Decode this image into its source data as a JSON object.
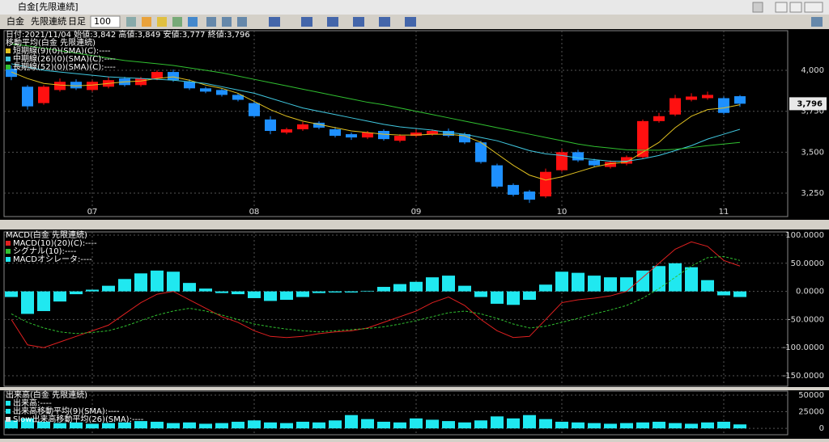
{
  "window": {
    "title": "白金[先限連続]"
  },
  "toolbar": {
    "symbol": "白金",
    "contract": "先限連続",
    "period": "日足",
    "count": "100"
  },
  "price_tag": "3,796",
  "chart_data": [
    {
      "type": "candlestick",
      "info": "日付:2021/11/04 始値:3,842 高値:3,849 安値:3,777 終値:3,796",
      "legend_title": "移動平均(白金 先限連続)",
      "categories": [
        null,
        null,
        null,
        null,
        null,
        "07",
        null,
        null,
        null,
        null,
        null,
        null,
        null,
        null,
        null,
        "08",
        null,
        null,
        null,
        null,
        null,
        null,
        null,
        null,
        null,
        "09",
        null,
        null,
        null,
        null,
        null,
        null,
        null,
        null,
        "10",
        null,
        null,
        null,
        null,
        null,
        null,
        null,
        null,
        null,
        "11",
        null
      ],
      "open": [
        4010,
        3900,
        3800,
        3880,
        3930,
        3880,
        3900,
        3950,
        3910,
        3950,
        3990,
        3930,
        3890,
        3880,
        3850,
        3800,
        3700,
        3620,
        3640,
        3680,
        3640,
        3610,
        3590,
        3630,
        3570,
        3600,
        3610,
        3630,
        3610,
        3560,
        3420,
        3300,
        3260,
        3230,
        3390,
        3500,
        3450,
        3410,
        3430,
        3470,
        3690,
        3730,
        3820,
        3830,
        3830,
        3842
      ],
      "high": [
        4030,
        3910,
        3910,
        3950,
        3945,
        3940,
        3960,
        3960,
        3960,
        4000,
        4005,
        3945,
        3900,
        3890,
        3860,
        3810,
        3720,
        3650,
        3685,
        3690,
        3655,
        3620,
        3630,
        3640,
        3610,
        3640,
        3640,
        3645,
        3620,
        3570,
        3430,
        3310,
        3270,
        3400,
        3520,
        3515,
        3460,
        3450,
        3480,
        3700,
        3740,
        3850,
        3860,
        3870,
        3840,
        3849
      ],
      "low": [
        3940,
        3760,
        3790,
        3870,
        3880,
        3870,
        3890,
        3900,
        3900,
        3940,
        3930,
        3880,
        3860,
        3840,
        3810,
        3710,
        3610,
        3610,
        3630,
        3640,
        3590,
        3575,
        3580,
        3570,
        3560,
        3590,
        3600,
        3590,
        3550,
        3430,
        3280,
        3230,
        3190,
        3220,
        3380,
        3440,
        3410,
        3400,
        3420,
        3460,
        3680,
        3720,
        3810,
        3820,
        3730,
        3777
      ],
      "close": [
        3960,
        3780,
        3900,
        3930,
        3890,
        3930,
        3940,
        3910,
        3950,
        3990,
        3940,
        3890,
        3870,
        3850,
        3820,
        3720,
        3630,
        3640,
        3670,
        3650,
        3600,
        3590,
        3620,
        3580,
        3600,
        3620,
        3630,
        3600,
        3560,
        3440,
        3290,
        3240,
        3210,
        3380,
        3500,
        3450,
        3420,
        3440,
        3470,
        3690,
        3720,
        3830,
        3840,
        3850,
        3740,
        3796
      ],
      "up_color": "#ff1010",
      "down_color": "#1e90ff",
      "series": [
        {
          "name": "短期線(9)(0)(SMA)(C):----",
          "color": "#e0c020",
          "values": [
            3990,
            3950,
            3920,
            3910,
            3905,
            3910,
            3920,
            3930,
            3935,
            3950,
            3960,
            3940,
            3910,
            3890,
            3860,
            3810,
            3760,
            3720,
            3690,
            3670,
            3650,
            3630,
            3620,
            3610,
            3605,
            3605,
            3610,
            3610,
            3600,
            3560,
            3490,
            3420,
            3360,
            3330,
            3350,
            3380,
            3410,
            3430,
            3440,
            3500,
            3560,
            3650,
            3720,
            3760,
            3770,
            3790
          ]
        },
        {
          "name": "中期線(26)(0)(SMA)(C):----",
          "color": "#40c8e0",
          "values": [
            4040,
            4020,
            4000,
            3990,
            3980,
            3970,
            3960,
            3955,
            3950,
            3945,
            3940,
            3930,
            3920,
            3900,
            3880,
            3860,
            3830,
            3800,
            3770,
            3750,
            3730,
            3710,
            3690,
            3670,
            3655,
            3645,
            3635,
            3620,
            3610,
            3590,
            3570,
            3540,
            3510,
            3490,
            3480,
            3465,
            3455,
            3445,
            3445,
            3460,
            3480,
            3510,
            3540,
            3580,
            3610,
            3640
          ]
        },
        {
          "name": "長期線(52)(0)(SMA)(C):----",
          "color": "#30c030",
          "values": [
            4160,
            4150,
            4135,
            4120,
            4105,
            4090,
            4075,
            4060,
            4050,
            4040,
            4030,
            4015,
            4000,
            3985,
            3965,
            3945,
            3925,
            3905,
            3885,
            3865,
            3845,
            3825,
            3805,
            3790,
            3770,
            3750,
            3730,
            3710,
            3690,
            3670,
            3650,
            3630,
            3610,
            3590,
            3570,
            3550,
            3535,
            3525,
            3515,
            3512,
            3512,
            3518,
            3528,
            3540,
            3550,
            3560
          ]
        }
      ],
      "ylim": [
        3107,
        4242
      ],
      "yticks": [
        {
          "value": 3250,
          "label": "3,250"
        },
        {
          "value": 3500,
          "label": "3,500"
        },
        {
          "value": 3750,
          "label": "3,750"
        },
        {
          "value": 4000,
          "label": "4,000"
        }
      ],
      "grid": true
    },
    {
      "type": "macd",
      "legend_title": "MACD(白金 先限連続)",
      "series": [
        {
          "name": "MACD(10)(20)(C):----",
          "color": "#e02020",
          "values": [
            -50,
            -95,
            -100,
            -90,
            -80,
            -70,
            -60,
            -40,
            -20,
            -5,
            0,
            -15,
            -30,
            -45,
            -55,
            -70,
            -80,
            -82,
            -80,
            -75,
            -72,
            -70,
            -65,
            -55,
            -45,
            -35,
            -20,
            -10,
            -25,
            -50,
            -70,
            -82,
            -80,
            -50,
            -20,
            -15,
            -12,
            -8,
            0,
            25,
            50,
            75,
            88,
            80,
            55,
            45
          ]
        },
        {
          "name": "シグナル(10):----",
          "color": "#30c030",
          "values": [
            -40,
            -55,
            -65,
            -72,
            -75,
            -73,
            -70,
            -62,
            -52,
            -42,
            -35,
            -30,
            -35,
            -42,
            -50,
            -58,
            -63,
            -67,
            -70,
            -72,
            -70,
            -68,
            -66,
            -63,
            -58,
            -52,
            -45,
            -38,
            -35,
            -40,
            -48,
            -58,
            -65,
            -62,
            -55,
            -48,
            -40,
            -33,
            -25,
            -12,
            5,
            25,
            45,
            60,
            62,
            55
          ]
        },
        {
          "name": "MACDオシレータ:----",
          "color": "#20e8f0",
          "values": [
            -10,
            -40,
            -35,
            -18,
            -5,
            3,
            10,
            22,
            32,
            37,
            35,
            15,
            5,
            -3,
            -5,
            -12,
            -17,
            -15,
            -10,
            -3,
            -2,
            -2,
            1,
            8,
            13,
            17,
            25,
            28,
            10,
            -10,
            -22,
            -24,
            -15,
            12,
            35,
            33,
            28,
            25,
            25,
            37,
            45,
            50,
            43,
            20,
            -7,
            -10
          ]
        }
      ],
      "ylim": [
        -168.6,
        105.7
      ],
      "yticks": [
        {
          "value": 100,
          "label": "100.0000"
        },
        {
          "value": 50,
          "label": "50.0000"
        },
        {
          "value": 0,
          "label": "0.0000"
        },
        {
          "value": -50,
          "label": "-50.0000"
        },
        {
          "value": -100,
          "label": "-100.0000"
        },
        {
          "value": -150,
          "label": "-150.0000"
        }
      ],
      "grid": true
    },
    {
      "type": "volume",
      "legend_title": "出来高(白金 先限連続)",
      "series": [
        {
          "name": "出来高:----",
          "color": "#20e8f0",
          "values": [
            12000,
            15000,
            10000,
            8000,
            9000,
            7000,
            8000,
            9000,
            11000,
            10000,
            8000,
            9000,
            7000,
            8000,
            10000,
            12000,
            9000,
            8000,
            10000,
            9000,
            12000,
            20000,
            14000,
            10000,
            9000,
            15000,
            13000,
            11000,
            9000,
            12000,
            18000,
            15000,
            20000,
            14000,
            10000,
            9000,
            8000,
            7000,
            8000,
            9000,
            10000,
            8000,
            7000,
            9000,
            10000,
            6000
          ]
        }
      ],
      "legend": [
        "出来高移動平均(9)(SMA):----",
        "Slow出来高移動平均(26)(SMA):----"
      ],
      "legend_colors": [
        "#20e8f0",
        "#e0e0e0"
      ],
      "ylim": [
        -9500,
        56000
      ],
      "yticks": [
        50000,
        25000,
        0
      ],
      "grid": true
    }
  ]
}
